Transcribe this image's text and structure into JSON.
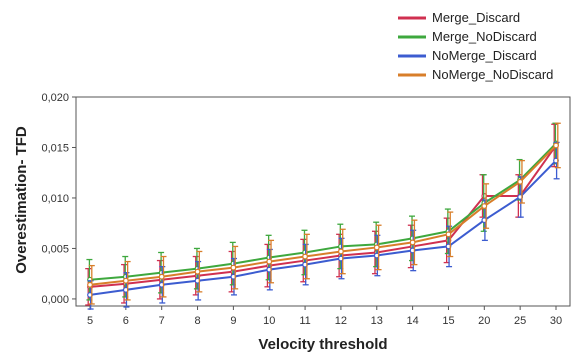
{
  "chart_data": {
    "type": "line",
    "title": "",
    "xlabel": "Velocity threshold",
    "ylabel": "Overestimation- TFD",
    "categories": [
      "5",
      "6",
      "7",
      "8",
      "9",
      "10",
      "11",
      "12",
      "13",
      "14",
      "15",
      "20",
      "25",
      "30"
    ],
    "y_ticks": [
      "0,000",
      "0,005",
      "0,010",
      "0,015",
      "0,020"
    ],
    "ylim": [
      -0.0007,
      0.02
    ],
    "grid": false,
    "legend": "top-right",
    "series": [
      {
        "name": "Merge_Discard",
        "color": "#d03050",
        "values": [
          0.0012,
          0.0015,
          0.0019,
          0.0023,
          0.0027,
          0.0033,
          0.0038,
          0.0043,
          0.0046,
          0.0052,
          0.0058,
          0.0102,
          0.0102,
          0.0152
        ],
        "err": [
          0.0018,
          0.0019,
          0.0019,
          0.0019,
          0.002,
          0.0021,
          0.0021,
          0.0021,
          0.0021,
          0.0021,
          0.0022,
          0.0021,
          0.0021,
          0.0021
        ]
      },
      {
        "name": "Merge_NoDiscard",
        "color": "#3ea83e",
        "values": [
          0.0019,
          0.0022,
          0.0026,
          0.003,
          0.0035,
          0.0041,
          0.0046,
          0.0052,
          0.0054,
          0.006,
          0.0067,
          0.0095,
          0.0118,
          0.0154
        ],
        "err": [
          0.002,
          0.002,
          0.002,
          0.002,
          0.0021,
          0.0022,
          0.0022,
          0.0022,
          0.0022,
          0.0022,
          0.0022,
          0.0028,
          0.002,
          0.002
        ]
      },
      {
        "name": "NoMerge_Discard",
        "color": "#3c5cd0",
        "values": [
          0.0004,
          0.0009,
          0.0014,
          0.0018,
          0.0022,
          0.0029,
          0.0034,
          0.004,
          0.0043,
          0.0048,
          0.0052,
          0.0078,
          0.0101,
          0.0137
        ],
        "err": [
          0.0014,
          0.0017,
          0.0018,
          0.0019,
          0.0018,
          0.002,
          0.002,
          0.002,
          0.002,
          0.002,
          0.002,
          0.002,
          0.002,
          0.0018
        ]
      },
      {
        "name": "NoMerge_NoDiscard",
        "color": "#d87e2a",
        "values": [
          0.0014,
          0.0018,
          0.0022,
          0.0027,
          0.0031,
          0.0037,
          0.0042,
          0.0047,
          0.0051,
          0.0056,
          0.0064,
          0.0092,
          0.0116,
          0.0152
        ],
        "err": [
          0.0019,
          0.0019,
          0.002,
          0.002,
          0.0021,
          0.0021,
          0.0022,
          0.0022,
          0.0022,
          0.0022,
          0.0022,
          0.0022,
          0.0021,
          0.0022
        ]
      }
    ]
  }
}
